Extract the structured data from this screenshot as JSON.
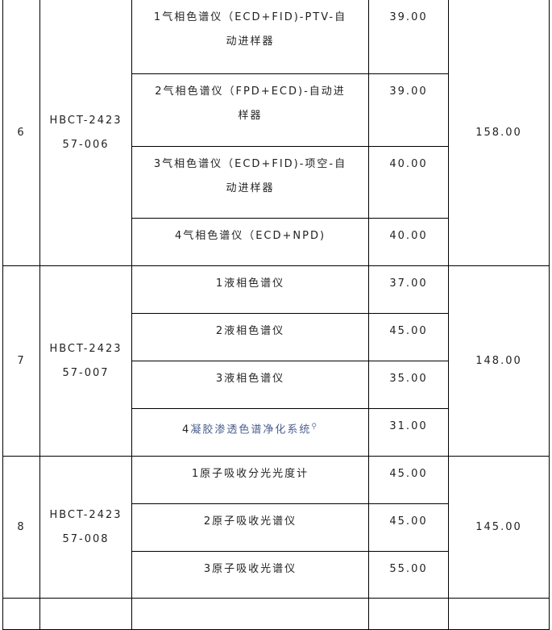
{
  "table": {
    "groups": [
      {
        "no": "6",
        "code": [
          "HBCT-2423",
          "57-006"
        ],
        "total": "158.00",
        "items": [
          {
            "name": [
              "1气相色谱仪（ECD+FID)-PTV-自",
              "动进样器"
            ],
            "price": "39.00"
          },
          {
            "name": [
              "2气相色谱仪（FPD+ECD)-自动进",
              "样器"
            ],
            "price": "39.00"
          },
          {
            "name": [
              "3气相色谱仪（ECD+FID)-项空-自",
              "动进样器"
            ],
            "price": "40.00"
          },
          {
            "name": [
              "4气相色谱仪（ECD+NPD)"
            ],
            "price": "40.00"
          }
        ]
      },
      {
        "no": "7",
        "code": [
          "HBCT-2423",
          "57-007"
        ],
        "total": "148.00",
        "items": [
          {
            "name": [
              "1液相色谱仪"
            ],
            "price": "37.00"
          },
          {
            "name": [
              "2液相色谱仪"
            ],
            "price": "45.00"
          },
          {
            "name": [
              "3液相色谱仪"
            ],
            "price": "35.00"
          },
          {
            "prefix": "4",
            "link": "凝胶渗透色谱净化系统",
            "link_icon": "search-icon",
            "price": "31.00"
          }
        ]
      },
      {
        "no": "8",
        "code": [
          "HBCT-2423",
          "57-008"
        ],
        "total": "145.00",
        "items": [
          {
            "name": [
              "1原子吸收分光光度计"
            ],
            "price": "45.00"
          },
          {
            "name": [
              "2原子吸收光谱仪"
            ],
            "price": "45.00"
          },
          {
            "name": [
              "3原子吸收光谱仪"
            ],
            "price": "55.00"
          }
        ]
      }
    ]
  }
}
